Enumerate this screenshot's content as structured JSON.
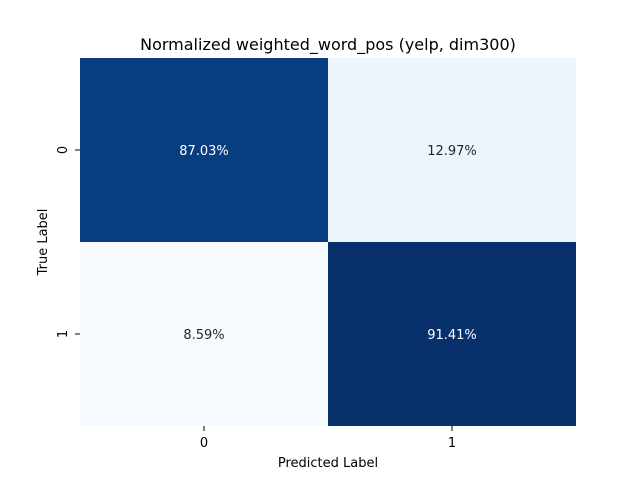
{
  "chart_data": {
    "type": "heatmap",
    "title": "Normalized weighted_word_pos (yelp, dim300)",
    "xlabel": "Predicted Label",
    "ylabel": "True Label",
    "x_categories": [
      "0",
      "1"
    ],
    "y_categories": [
      "0",
      "1"
    ],
    "values": [
      [
        87.03,
        12.97
      ],
      [
        8.59,
        91.41
      ]
    ],
    "value_labels": [
      [
        "87.03%",
        "12.97%"
      ],
      [
        "8.59%",
        "91.41%"
      ]
    ],
    "colormap": "Blues",
    "colorbar": false
  }
}
